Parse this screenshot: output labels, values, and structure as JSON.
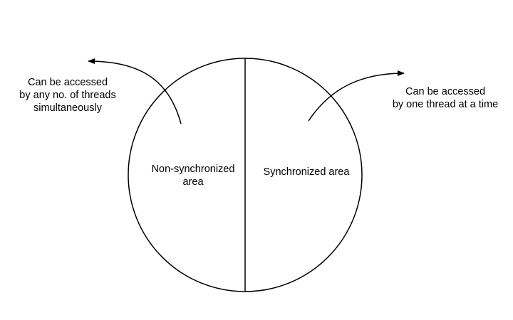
{
  "diagram": {
    "stroke_color": "#000000",
    "background_color": "#ffffff",
    "circle": {
      "left_half": {
        "label_lines": [
          "Non-synchronized",
          "area"
        ]
      },
      "right_half": {
        "label_lines": [
          "Synchronized area"
        ]
      }
    },
    "annotations": {
      "left": {
        "lines": [
          "Can be accessed",
          "by any no. of threads",
          "simultaneously"
        ]
      },
      "right": {
        "lines": [
          "Can be accessed",
          "by one thread at a time"
        ]
      }
    }
  }
}
